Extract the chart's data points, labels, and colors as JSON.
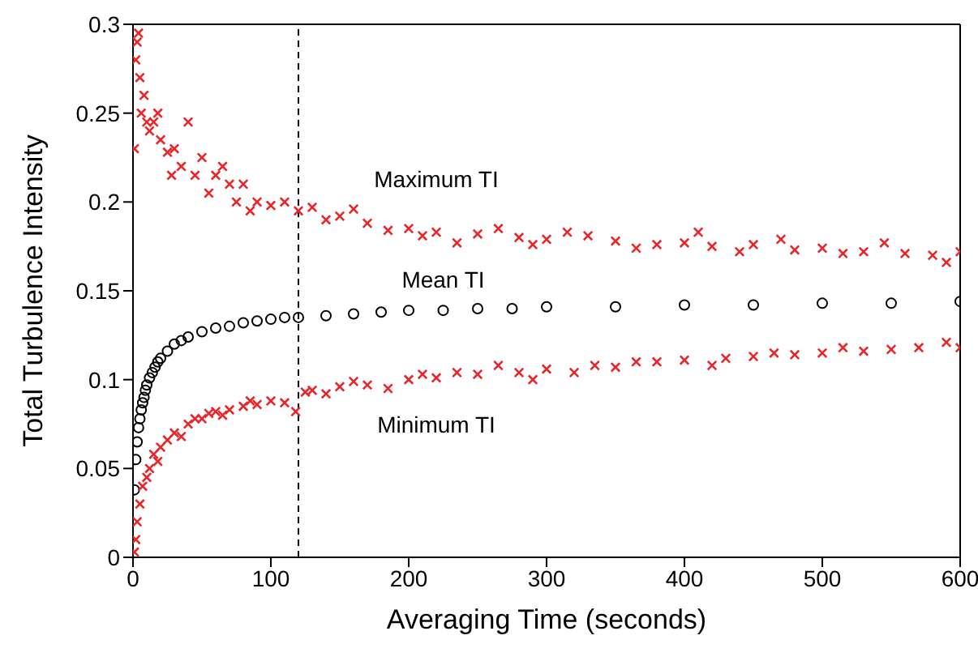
{
  "chart_data": {
    "type": "scatter",
    "xlabel": "Averaging Time (seconds)",
    "ylabel": "Total Turbulence Intensity",
    "xlim": [
      0,
      600
    ],
    "xticks": [
      0,
      100,
      200,
      300,
      400,
      500,
      600
    ],
    "ylim": [
      0,
      0.3
    ],
    "yticks": [
      0,
      0.05,
      0.1,
      0.15,
      0.2,
      0.25,
      0.3
    ],
    "ref_lines": [
      {
        "axis": "x",
        "value": 120,
        "line_style": "dashed",
        "color": "#000000"
      }
    ],
    "series": [
      {
        "name": "Maximum TI",
        "color": "#e8262a",
        "marker": "cross",
        "x": [
          1,
          2,
          3,
          4,
          5,
          6,
          8,
          10,
          12,
          15,
          18,
          20,
          25,
          28,
          30,
          35,
          40,
          45,
          50,
          55,
          60,
          65,
          70,
          75,
          80,
          85,
          90,
          100,
          110,
          120,
          130,
          140,
          150,
          160,
          170,
          185,
          200,
          210,
          220,
          235,
          250,
          265,
          280,
          290,
          300,
          315,
          330,
          350,
          365,
          380,
          400,
          410,
          420,
          440,
          450,
          470,
          480,
          500,
          515,
          530,
          545,
          560,
          580,
          590,
          600
        ],
        "values": [
          0.23,
          0.28,
          0.29,
          0.295,
          0.27,
          0.25,
          0.26,
          0.245,
          0.24,
          0.245,
          0.25,
          0.235,
          0.228,
          0.215,
          0.23,
          0.22,
          0.245,
          0.215,
          0.225,
          0.205,
          0.215,
          0.22,
          0.21,
          0.2,
          0.21,
          0.195,
          0.2,
          0.198,
          0.2,
          0.195,
          0.197,
          0.19,
          0.192,
          0.196,
          0.188,
          0.184,
          0.185,
          0.181,
          0.183,
          0.177,
          0.182,
          0.185,
          0.18,
          0.176,
          0.179,
          0.183,
          0.181,
          0.178,
          0.174,
          0.176,
          0.177,
          0.183,
          0.175,
          0.172,
          0.176,
          0.179,
          0.173,
          0.174,
          0.171,
          0.172,
          0.177,
          0.171,
          0.17,
          0.166,
          0.172
        ]
      },
      {
        "name": "Mean TI",
        "color": "#000000",
        "marker": "circle",
        "x": [
          1,
          2,
          3,
          4,
          5,
          6,
          7,
          8,
          9,
          10,
          12,
          14,
          16,
          18,
          20,
          25,
          30,
          35,
          40,
          50,
          60,
          70,
          80,
          90,
          100,
          110,
          120,
          140,
          160,
          180,
          200,
          225,
          250,
          275,
          300,
          350,
          400,
          450,
          500,
          550,
          600
        ],
        "values": [
          0.038,
          0.055,
          0.065,
          0.073,
          0.078,
          0.083,
          0.087,
          0.09,
          0.094,
          0.097,
          0.101,
          0.104,
          0.107,
          0.11,
          0.112,
          0.116,
          0.12,
          0.122,
          0.124,
          0.127,
          0.129,
          0.13,
          0.132,
          0.133,
          0.134,
          0.135,
          0.135,
          0.136,
          0.137,
          0.138,
          0.139,
          0.139,
          0.14,
          0.14,
          0.141,
          0.141,
          0.142,
          0.142,
          0.143,
          0.143,
          0.144
        ]
      },
      {
        "name": "Minimum TI",
        "color": "#e8262a",
        "marker": "cross",
        "x": [
          1,
          2,
          3,
          5,
          7,
          10,
          12,
          15,
          18,
          20,
          25,
          30,
          35,
          40,
          45,
          50,
          55,
          60,
          65,
          70,
          80,
          85,
          90,
          100,
          110,
          118,
          125,
          130,
          140,
          150,
          160,
          170,
          185,
          200,
          210,
          220,
          235,
          250,
          265,
          280,
          290,
          300,
          320,
          335,
          350,
          365,
          380,
          400,
          420,
          430,
          450,
          465,
          480,
          500,
          515,
          530,
          550,
          570,
          590,
          600
        ],
        "values": [
          0.003,
          0.01,
          0.02,
          0.03,
          0.04,
          0.045,
          0.05,
          0.058,
          0.054,
          0.062,
          0.066,
          0.07,
          0.068,
          0.075,
          0.078,
          0.078,
          0.081,
          0.082,
          0.08,
          0.083,
          0.085,
          0.088,
          0.086,
          0.088,
          0.087,
          0.082,
          0.093,
          0.094,
          0.092,
          0.096,
          0.099,
          0.097,
          0.095,
          0.1,
          0.103,
          0.101,
          0.104,
          0.103,
          0.108,
          0.104,
          0.1,
          0.106,
          0.104,
          0.108,
          0.107,
          0.11,
          0.11,
          0.111,
          0.108,
          0.112,
          0.113,
          0.115,
          0.114,
          0.115,
          0.118,
          0.116,
          0.117,
          0.118,
          0.121,
          0.118
        ]
      }
    ]
  }
}
